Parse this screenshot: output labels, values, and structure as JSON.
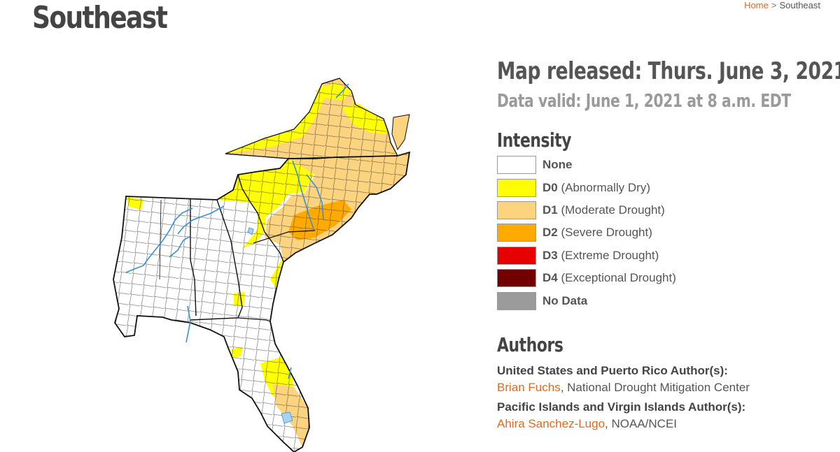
{
  "page": {
    "title": "Southeast",
    "breadcrumb": {
      "home": "Home",
      "separator": ">",
      "current": "Southeast"
    }
  },
  "map_info": {
    "released": "Map released: Thurs. June 3, 2021",
    "valid": "Data valid: June 1, 2021 at 8 a.m. EDT"
  },
  "intensity": {
    "heading": "Intensity",
    "items": [
      {
        "code": "",
        "label": "None",
        "color": "#ffffff"
      },
      {
        "code": "D0",
        "label": "(Abnormally Dry)",
        "color": "#ffff00"
      },
      {
        "code": "D1",
        "label": "(Moderate Drought)",
        "color": "#fcd37f"
      },
      {
        "code": "D2",
        "label": "(Severe Drought)",
        "color": "#ffaa00"
      },
      {
        "code": "D3",
        "label": "(Extreme Drought)",
        "color": "#e60000"
      },
      {
        "code": "D4",
        "label": "(Exceptional Drought)",
        "color": "#730000"
      },
      {
        "code": "",
        "label": "No Data",
        "color": "#9b9b9b"
      }
    ]
  },
  "authors": {
    "heading": "Authors",
    "groups": [
      {
        "label": "United States and Puerto Rico Author(s):",
        "name": "Brian Fuchs",
        "org": ", National Drought Mitigation Center"
      },
      {
        "label": "Pacific Islands and Virgin Islands Author(s):",
        "name": "Ahira Sanchez-Lugo",
        "org": ", NOAA/NCEI"
      }
    ]
  },
  "colors": {
    "accent": "#e06b1f",
    "water": "#3a8fd9",
    "lake": "#a7d3f2"
  }
}
